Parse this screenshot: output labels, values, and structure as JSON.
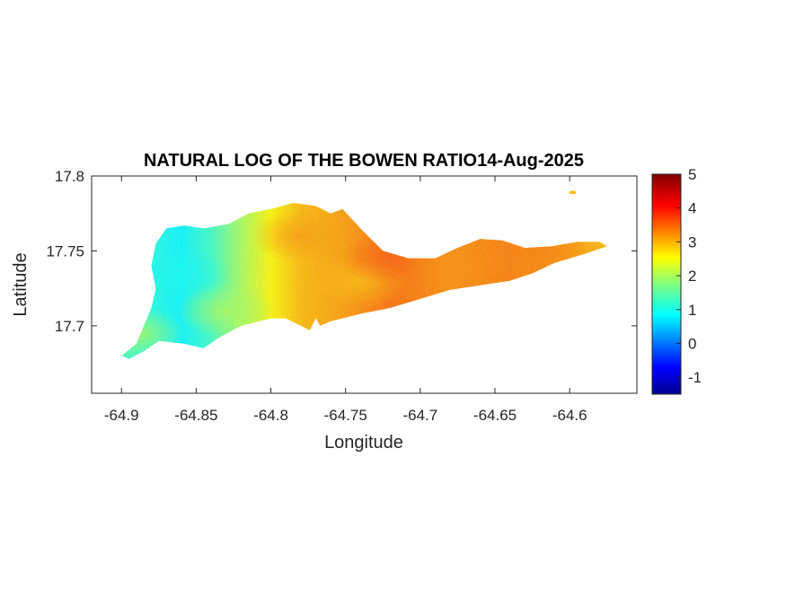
{
  "figure": {
    "title": "NATURAL LOG OF THE BOWEN RATIO14-Aug-2025",
    "xlabel": "Longitude",
    "ylabel": "Latitude"
  },
  "chart_data": {
    "type": "heatmap",
    "title": "NATURAL LOG OF THE BOWEN RATIO14-Aug-2025",
    "xlabel": "Longitude",
    "ylabel": "Latitude",
    "xlim": [
      -64.92,
      -64.555
    ],
    "ylim": [
      17.655,
      17.8
    ],
    "x_ticks": [
      -64.9,
      -64.85,
      -64.8,
      -64.75,
      -64.7,
      -64.65,
      -64.6
    ],
    "x_tick_labels": [
      "-64.9",
      "-64.85",
      "-64.8",
      "-64.75",
      "-64.7",
      "-64.65",
      "-64.6"
    ],
    "y_ticks": [
      17.7,
      17.75,
      17.8
    ],
    "y_tick_labels": [
      "17.7",
      "17.75",
      "17.8"
    ],
    "colormap": "jet",
    "clim": [
      -1.5,
      5
    ],
    "colorbar_ticks": [
      -1,
      0,
      1,
      2,
      3,
      4,
      5
    ],
    "colorbar_tick_labels": [
      "-1",
      "0",
      "1",
      "2",
      "3",
      "4",
      "5"
    ],
    "colorbar_placement": "right",
    "grid": false,
    "region_summary": [
      {
        "lon": -64.86,
        "lat": 17.735,
        "value": 1.0
      },
      {
        "lon": -64.83,
        "lat": 17.71,
        "value": 2.0
      },
      {
        "lon": -64.89,
        "lat": 17.695,
        "value": 2.0
      },
      {
        "lon": -64.78,
        "lat": 17.76,
        "value": 3.2
      },
      {
        "lon": -64.74,
        "lat": 17.73,
        "value": 3.0
      },
      {
        "lon": -64.72,
        "lat": 17.745,
        "value": 3.6
      },
      {
        "lon": -64.68,
        "lat": 17.74,
        "value": 3.3
      },
      {
        "lon": -64.62,
        "lat": 17.75,
        "value": 3.4
      }
    ],
    "island_outline": [
      [
        -64.9,
        17.68
      ],
      [
        -64.89,
        17.688
      ],
      [
        -64.885,
        17.7
      ],
      [
        -64.88,
        17.712
      ],
      [
        -64.877,
        17.725
      ],
      [
        -64.88,
        17.74
      ],
      [
        -64.877,
        17.755
      ],
      [
        -64.87,
        17.765
      ],
      [
        -64.858,
        17.767
      ],
      [
        -64.845,
        17.765
      ],
      [
        -64.828,
        17.768
      ],
      [
        -64.815,
        17.775
      ],
      [
        -64.8,
        17.778
      ],
      [
        -64.785,
        17.782
      ],
      [
        -64.77,
        17.78
      ],
      [
        -64.76,
        17.775
      ],
      [
        -64.752,
        17.778
      ],
      [
        -64.74,
        17.765
      ],
      [
        -64.725,
        17.75
      ],
      [
        -64.708,
        17.745
      ],
      [
        -64.69,
        17.745
      ],
      [
        -64.675,
        17.752
      ],
      [
        -64.66,
        17.758
      ],
      [
        -64.645,
        17.757
      ],
      [
        -64.63,
        17.752
      ],
      [
        -64.612,
        17.753
      ],
      [
        -64.595,
        17.756
      ],
      [
        -64.58,
        17.756
      ],
      [
        -64.575,
        17.753
      ],
      [
        -64.59,
        17.748
      ],
      [
        -64.61,
        17.742
      ],
      [
        -64.625,
        17.735
      ],
      [
        -64.64,
        17.73
      ],
      [
        -64.66,
        17.727
      ],
      [
        -64.68,
        17.724
      ],
      [
        -64.7,
        17.718
      ],
      [
        -64.72,
        17.712
      ],
      [
        -64.74,
        17.708
      ],
      [
        -64.76,
        17.703
      ],
      [
        -64.767,
        17.7
      ],
      [
        -64.77,
        17.705
      ],
      [
        -64.774,
        17.697
      ],
      [
        -64.78,
        17.7
      ],
      [
        -64.79,
        17.705
      ],
      [
        -64.8,
        17.705
      ],
      [
        -64.82,
        17.7
      ],
      [
        -64.835,
        17.692
      ],
      [
        -64.845,
        17.685
      ],
      [
        -64.858,
        17.688
      ],
      [
        -64.875,
        17.69
      ],
      [
        -64.885,
        17.683
      ],
      [
        -64.895,
        17.678
      ]
    ],
    "island_outline_value_by_lon": [
      [
        -64.9,
        1.3
      ],
      [
        -64.88,
        1.1
      ],
      [
        -64.86,
        0.9
      ],
      [
        -64.84,
        1.3
      ],
      [
        -64.82,
        2.0
      ],
      [
        -64.8,
        2.6
      ],
      [
        -64.78,
        3.0
      ],
      [
        -64.75,
        3.2
      ],
      [
        -64.72,
        3.5
      ],
      [
        -64.68,
        3.3
      ],
      [
        -64.64,
        3.4
      ],
      [
        -64.6,
        3.2
      ],
      [
        -64.575,
        3.0
      ]
    ],
    "islet": {
      "lon": -64.598,
      "lat": 17.789,
      "value": 3.0
    }
  }
}
